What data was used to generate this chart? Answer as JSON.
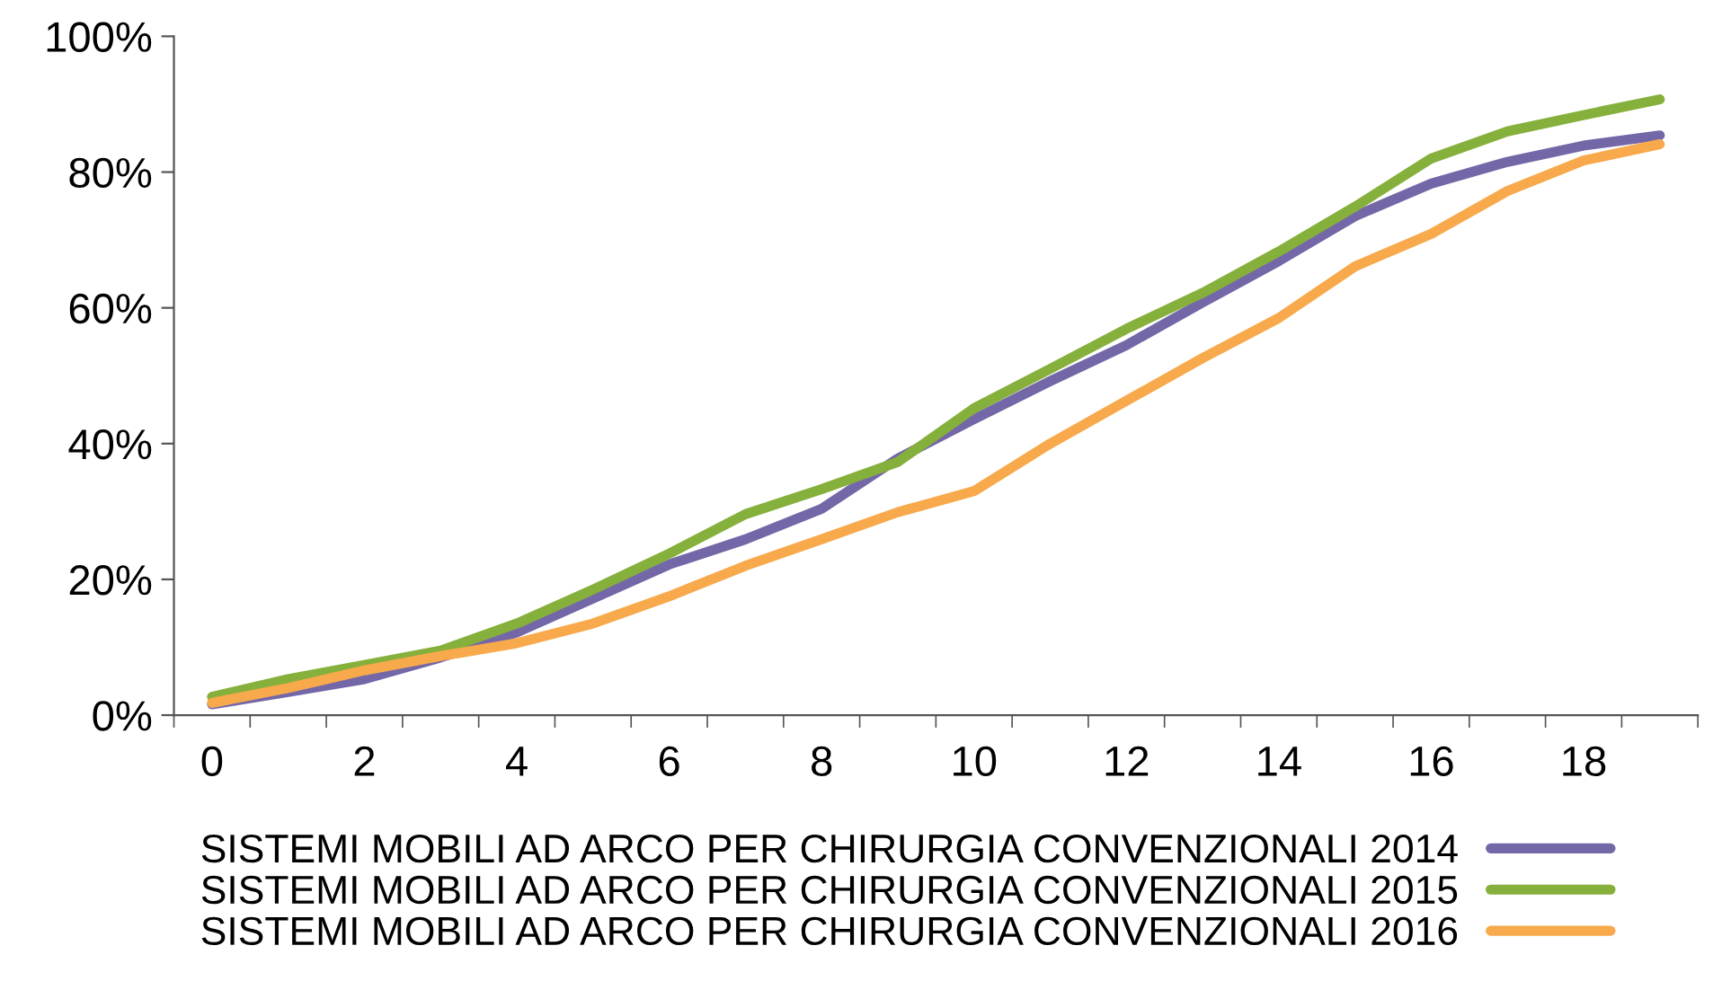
{
  "chart_data": {
    "type": "line",
    "categories": [
      "0",
      null,
      "2",
      null,
      "4",
      null,
      "6",
      null,
      "8",
      null,
      "10",
      null,
      "12",
      null,
      "14",
      null,
      "16",
      null,
      "18",
      null
    ],
    "ylim": [
      0,
      100
    ],
    "yticks": [
      {
        "value": 0,
        "label": "0%"
      },
      {
        "value": 20,
        "label": "20%"
      },
      {
        "value": 40,
        "label": "40%"
      },
      {
        "value": 60,
        "label": "60%"
      },
      {
        "value": 80,
        "label": "80%"
      },
      {
        "value": 100,
        "label": "100%"
      }
    ],
    "grid": false,
    "legend": "bottom",
    "marker": "none",
    "line_style": "solid",
    "series": [
      {
        "name": "SISTEMI MOBILI AD ARCO PER CHIRURGIA CONVENZIONALI 2014",
        "color": "#7467a8",
        "values": [
          1.6,
          3.4,
          5.3,
          8.5,
          12.2,
          17.2,
          22.2,
          25.9,
          30.4,
          37.8,
          43.6,
          49.2,
          54.5,
          60.8,
          66.9,
          73.5,
          78.3,
          81.5,
          83.9,
          85.4
        ]
      },
      {
        "name": "SISTEMI MOBILI AD ARCO PER CHIRURGIA CONVENZIONALI 2015",
        "color": "#86b03c",
        "values": [
          2.7,
          5.3,
          7.4,
          9.5,
          13.5,
          18.5,
          23.8,
          29.6,
          33.3,
          37.3,
          45.2,
          51,
          56.9,
          62.2,
          68.3,
          74.9,
          82,
          86,
          88.4,
          90.7
        ]
      },
      {
        "name": "SISTEMI MOBILI AD ARCO PER CHIRURGIA CONVENZIONALI 2016",
        "color": "#f7a94b",
        "values": [
          1.8,
          4,
          6.6,
          8.7,
          10.6,
          13.5,
          17.5,
          22,
          25.9,
          29.9,
          33,
          40,
          46.3,
          52.6,
          58.5,
          66.1,
          70.9,
          77.2,
          81.7,
          84.1
        ]
      }
    ]
  }
}
